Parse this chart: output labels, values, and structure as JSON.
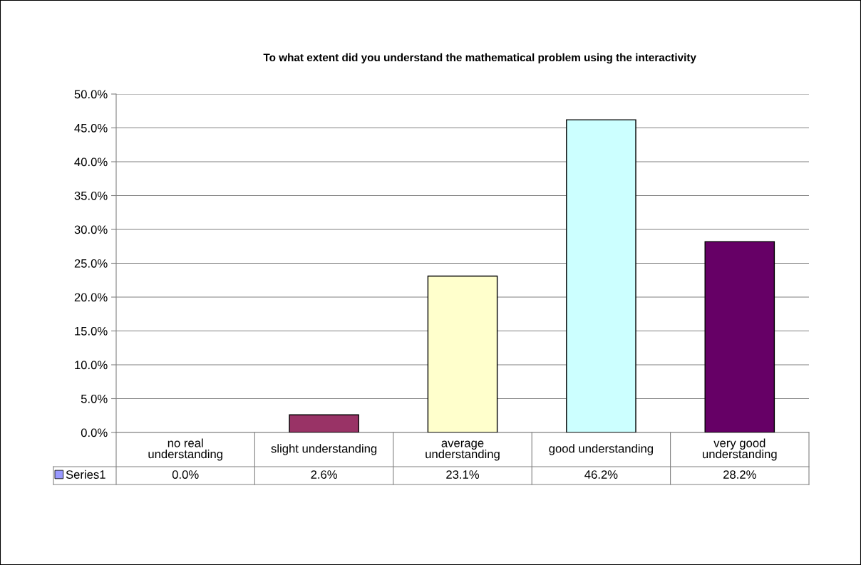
{
  "chart_data": {
    "type": "bar",
    "title": "To what extent did you understand the mathematical problem using the interactivity",
    "categories": [
      "no real understanding",
      "slight understanding",
      "average understanding",
      "good understanding",
      "very good understanding"
    ],
    "series": [
      {
        "name": "Series1",
        "color": "#9999ff",
        "colors": [
          "#9999ff",
          "#993366",
          "#ffffcc",
          "#ccffff",
          "#660066"
        ],
        "values": [
          0.0,
          2.6,
          23.1,
          46.2,
          28.2
        ],
        "value_labels": [
          "0.0%",
          "2.6%",
          "23.1%",
          "46.2%",
          "28.2%"
        ]
      }
    ],
    "ylim": [
      0,
      50
    ],
    "yticks": [
      {
        "value": 0,
        "label": "0.0%"
      },
      {
        "value": 5,
        "label": "5.0%"
      },
      {
        "value": 10,
        "label": "10.0%"
      },
      {
        "value": 15,
        "label": "15.0%"
      },
      {
        "value": 20,
        "label": "20.0%"
      },
      {
        "value": 25,
        "label": "25.0%"
      },
      {
        "value": 30,
        "label": "30.0%"
      },
      {
        "value": 35,
        "label": "35.0%"
      },
      {
        "value": 40,
        "label": "40.0%"
      },
      {
        "value": 45,
        "label": "45.0%"
      },
      {
        "value": 50,
        "label": "50.0%"
      }
    ],
    "grid": "y",
    "legend": "bottom left"
  }
}
